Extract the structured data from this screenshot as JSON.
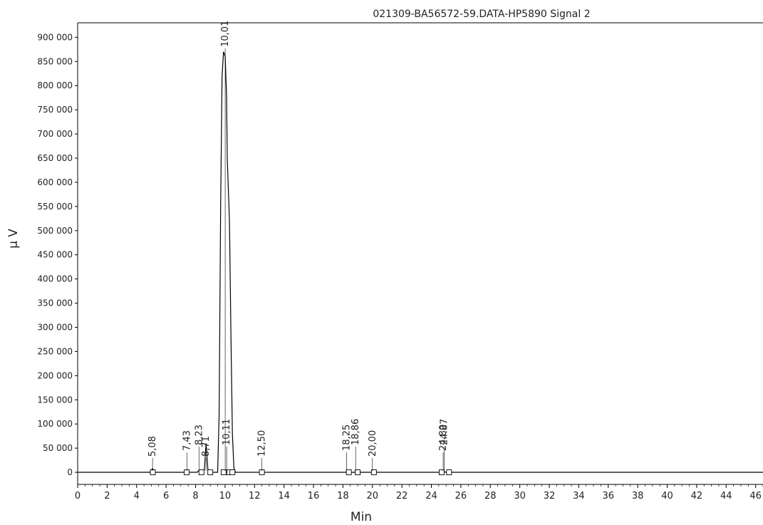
{
  "chart_data": {
    "type": "line",
    "title": "021309-BA56572-59.DATA-HP5890 Signal 2",
    "xlabel": "Min",
    "ylabel": "µ V",
    "xlim": [
      0,
      46.5
    ],
    "ylim": [
      -25000,
      930000
    ],
    "x_ticks": [
      "0",
      "2",
      "4",
      "6",
      "8",
      "10",
      "12",
      "14",
      "16",
      "18",
      "20",
      "22",
      "24",
      "26",
      "28",
      "30",
      "32",
      "34",
      "36",
      "38",
      "40",
      "42",
      "44",
      "46"
    ],
    "y_ticks": [
      "0",
      "50 000",
      "100 000",
      "150 000",
      "200 000",
      "250 000",
      "300 000",
      "350 000",
      "400 000",
      "450 000",
      "500 000",
      "550 000",
      "600 000",
      "650 000",
      "700 000",
      "750 000",
      "800 000",
      "850 000",
      "900 000"
    ],
    "series": [
      {
        "x": [
          0,
          4.9,
          5.0,
          5.08,
          5.2,
          7.3,
          7.43,
          7.6,
          8.1,
          8.23,
          8.4,
          8.6,
          8.71,
          8.85,
          9.5,
          9.6,
          9.7,
          9.8,
          9.9,
          10.01,
          10.1,
          10.15,
          10.3,
          10.4,
          10.5,
          10.6,
          10.7,
          12.4,
          12.5,
          12.6,
          18.2,
          18.25,
          18.3,
          18.8,
          18.86,
          18.95,
          19.9,
          20.0,
          20.1,
          24.7,
          24.8,
          24.87,
          25.0,
          46.5
        ],
        "y": [
          0,
          0,
          4000,
          8000,
          0,
          0,
          3000,
          0,
          0,
          4000,
          0,
          5000,
          60000,
          0,
          0,
          120000,
          550000,
          820000,
          870000,
          860000,
          780000,
          650000,
          520000,
          280000,
          80000,
          10000,
          0,
          0,
          1500,
          0,
          0,
          2000,
          0,
          0,
          1800,
          0,
          0,
          1500,
          0,
          0,
          1500,
          1200,
          0,
          0
        ]
      }
    ],
    "peaks": [
      {
        "label": "5,08",
        "x": 5.08
      },
      {
        "label": "7,43",
        "x": 7.43
      },
      {
        "label": "8,23",
        "x": 8.23
      },
      {
        "label": "8,71",
        "x": 8.71
      },
      {
        "label": "10,01",
        "x": 10.01
      },
      {
        "label": "10,11",
        "x": 10.11
      },
      {
        "label": "12,50",
        "x": 12.5
      },
      {
        "label": "18,25",
        "x": 18.25
      },
      {
        "label": "18,86",
        "x": 18.86
      },
      {
        "label": "20,00",
        "x": 20.0
      },
      {
        "label": "24,80",
        "x": 24.8
      },
      {
        "label": "24.87",
        "x": 24.87
      }
    ],
    "baseline_markers": [
      5.1,
      7.4,
      8.4,
      9.0,
      9.9,
      10.3,
      10.5,
      12.5,
      18.4,
      19.0,
      20.1,
      24.7,
      25.2
    ],
    "grid": false,
    "line_color": "#000000"
  }
}
